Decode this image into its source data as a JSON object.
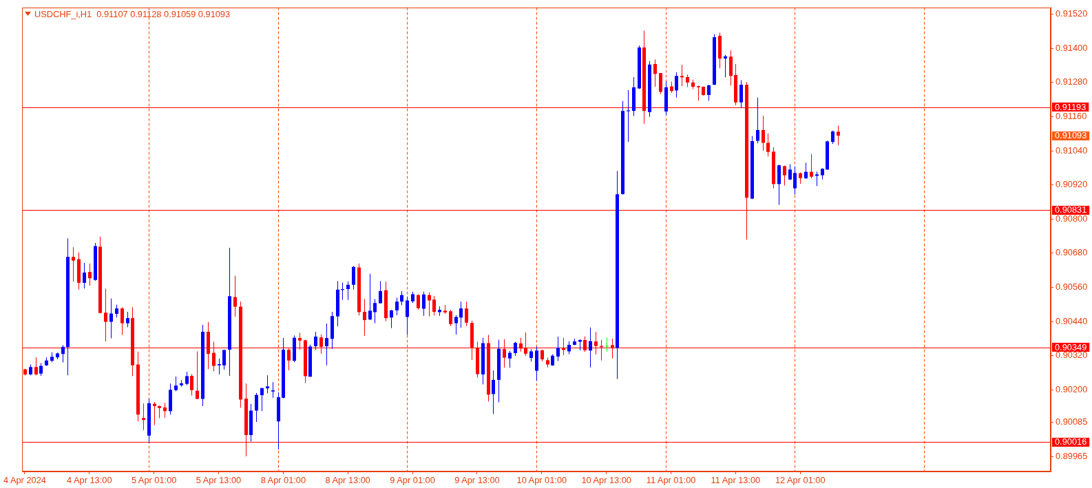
{
  "chart_data": {
    "type": "candlestick",
    "title": "USDCHF_i,H1  0.91107 0.91128 0.91059 0.91093",
    "categories": [
      "4 Apr 2024",
      null,
      null,
      null,
      null,
      null,
      null,
      null,
      null,
      null,
      null,
      null,
      "4 Apr 13:00",
      null,
      null,
      null,
      null,
      null,
      null,
      null,
      null,
      null,
      null,
      null,
      "5 Apr 01:00",
      null,
      null,
      null,
      null,
      null,
      null,
      null,
      null,
      null,
      null,
      null,
      "5 Apr 13:00",
      null,
      null,
      null,
      null,
      null,
      null,
      null,
      null,
      null,
      null,
      null,
      "8 Apr 01:00",
      null,
      null,
      null,
      null,
      null,
      null,
      null,
      null,
      null,
      null,
      null,
      "8 Apr 13:00",
      null,
      null,
      null,
      null,
      null,
      null,
      null,
      null,
      null,
      null,
      null,
      "9 Apr 01:00",
      null,
      null,
      null,
      null,
      null,
      null,
      null,
      null,
      null,
      null,
      null,
      "9 Apr 13:00",
      null,
      null,
      null,
      null,
      null,
      null,
      null,
      null,
      null,
      null,
      null,
      "10 Apr 01:00",
      null,
      null,
      null,
      null,
      null,
      null,
      null,
      null,
      null,
      null,
      null,
      "10 Apr 13:00",
      null,
      null,
      null,
      null,
      null,
      null,
      null,
      null,
      null,
      null,
      null,
      "11 Apr 01:00",
      null,
      null,
      null,
      null,
      null,
      null,
      null,
      null,
      null,
      null,
      null,
      "11 Apr 13:00",
      null,
      null,
      null,
      null,
      null,
      null,
      null,
      null,
      null,
      null,
      null,
      "12 Apr 01:00",
      null,
      null,
      null,
      null,
      null,
      null,
      null,
      null,
      null,
      null,
      null,
      null,
      null,
      null,
      null,
      null,
      null,
      null,
      null,
      null,
      null,
      null,
      null,
      null,
      null,
      null,
      null,
      null,
      null,
      null,
      null,
      null,
      null,
      null,
      null,
      null,
      null,
      null,
      null,
      null,
      null,
      null,
      null,
      null,
      null,
      null
    ],
    "ohlc": [
      [
        0.90272,
        0.90274,
        0.9025,
        0.90254
      ],
      [
        0.90254,
        0.90289,
        0.90251,
        0.9028
      ],
      [
        0.9028,
        0.90314,
        0.90251,
        0.90254
      ],
      [
        0.90257,
        0.90294,
        0.90249,
        0.90284
      ],
      [
        0.90286,
        0.90314,
        0.90284,
        0.90303
      ],
      [
        0.90302,
        0.90332,
        0.90297,
        0.90316
      ],
      [
        0.90314,
        0.90331,
        0.90307,
        0.90328
      ],
      [
        0.90326,
        0.90357,
        0.90296,
        0.90351
      ],
      [
        0.9035,
        0.90732,
        0.90251,
        0.90667
      ],
      [
        0.90667,
        0.90701,
        0.9058,
        0.90654
      ],
      [
        0.90659,
        0.90683,
        0.90552,
        0.90576
      ],
      [
        0.90576,
        0.90646,
        0.90556,
        0.90612
      ],
      [
        0.90614,
        0.90644,
        0.90566,
        0.90592
      ],
      [
        0.90586,
        0.90716,
        0.90583,
        0.90705
      ],
      [
        0.90703,
        0.90738,
        0.90468,
        0.9047
      ],
      [
        0.90471,
        0.90555,
        0.9037,
        0.90439
      ],
      [
        0.90439,
        0.90521,
        0.90381,
        0.90468
      ],
      [
        0.90467,
        0.90499,
        0.90454,
        0.90486
      ],
      [
        0.90486,
        0.9049,
        0.90393,
        0.90434
      ],
      [
        0.90434,
        0.90474,
        0.9042,
        0.90452
      ],
      [
        0.90452,
        0.9049,
        0.90248,
        0.90286
      ],
      [
        0.90289,
        0.90334,
        0.90089,
        0.90113
      ],
      [
        0.90101,
        0.90152,
        0.90058,
        0.90094
      ],
      [
        0.90039,
        0.90168,
        0.90014,
        0.90153
      ],
      [
        0.90151,
        0.90157,
        0.90076,
        0.90143
      ],
      [
        0.90143,
        0.90145,
        0.901,
        0.90136
      ],
      [
        0.90138,
        0.90154,
        0.90102,
        0.90125
      ],
      [
        0.90125,
        0.90222,
        0.90113,
        0.902
      ],
      [
        0.90199,
        0.90247,
        0.90195,
        0.90215
      ],
      [
        0.90216,
        0.90234,
        0.90211,
        0.90223
      ],
      [
        0.90221,
        0.90263,
        0.90216,
        0.90248
      ],
      [
        0.90249,
        0.90255,
        0.9018,
        0.90199
      ],
      [
        0.90197,
        0.90335,
        0.90167,
        0.90168
      ],
      [
        0.90168,
        0.90428,
        0.90143,
        0.90404
      ],
      [
        0.90404,
        0.90438,
        0.90273,
        0.90326
      ],
      [
        0.9033,
        0.90369,
        0.90265,
        0.90284
      ],
      [
        0.90286,
        0.9031,
        0.90254,
        0.9029
      ],
      [
        0.90286,
        0.90341,
        0.90271,
        0.9034
      ],
      [
        0.90341,
        0.90699,
        0.90249,
        0.90529
      ],
      [
        0.90526,
        0.90601,
        0.90457,
        0.90492
      ],
      [
        0.90492,
        0.9051,
        0.90137,
        0.90166
      ],
      [
        0.90169,
        0.90222,
        0.89966,
        0.90041
      ],
      [
        0.90041,
        0.90151,
        0.90018,
        0.90127
      ],
      [
        0.90127,
        0.90189,
        0.90087,
        0.90182
      ],
      [
        0.90181,
        0.90207,
        0.90125,
        0.90206
      ],
      [
        0.90205,
        0.90251,
        0.90188,
        0.90212
      ],
      [
        0.90194,
        0.90227,
        0.90172,
        0.90198
      ],
      [
        0.90089,
        0.90191,
        0.89991,
        0.90174
      ],
      [
        0.90172,
        0.90382,
        0.9017,
        0.90341
      ],
      [
        0.90341,
        0.90345,
        0.90268,
        0.90303
      ],
      [
        0.90302,
        0.90391,
        0.90297,
        0.90383
      ],
      [
        0.90382,
        0.904,
        0.90341,
        0.90373
      ],
      [
        0.90374,
        0.90376,
        0.90224,
        0.90248
      ],
      [
        0.90246,
        0.90359,
        0.90246,
        0.90352
      ],
      [
        0.90353,
        0.90404,
        0.90341,
        0.90387
      ],
      [
        0.90384,
        0.90395,
        0.90327,
        0.90351
      ],
      [
        0.90353,
        0.90433,
        0.90286,
        0.90382
      ],
      [
        0.90379,
        0.90474,
        0.90344,
        0.90459
      ],
      [
        0.90458,
        0.90582,
        0.90423,
        0.90552
      ],
      [
        0.90551,
        0.90577,
        0.90516,
        0.90554
      ],
      [
        0.90554,
        0.90581,
        0.90516,
        0.90569
      ],
      [
        0.90569,
        0.90635,
        0.90552,
        0.90632
      ],
      [
        0.9063,
        0.90644,
        0.90461,
        0.90473
      ],
      [
        0.90474,
        0.90519,
        0.9039,
        0.90445
      ],
      [
        0.90447,
        0.90608,
        0.90445,
        0.90478
      ],
      [
        0.90473,
        0.90519,
        0.90434,
        0.90505
      ],
      [
        0.90504,
        0.90582,
        0.90504,
        0.90547
      ],
      [
        0.9055,
        0.9058,
        0.90441,
        0.90452
      ],
      [
        0.90454,
        0.90481,
        0.90417,
        0.90479
      ],
      [
        0.90479,
        0.90524,
        0.90462,
        0.9051
      ],
      [
        0.9051,
        0.90547,
        0.90497,
        0.90533
      ],
      [
        0.90456,
        0.90527,
        0.90393,
        0.90514
      ],
      [
        0.90511,
        0.90545,
        0.90505,
        0.90536
      ],
      [
        0.90533,
        0.90536,
        0.90482,
        0.90487
      ],
      [
        0.90485,
        0.90545,
        0.9046,
        0.90535
      ],
      [
        0.90533,
        0.90543,
        0.90458,
        0.90514
      ],
      [
        0.90517,
        0.9053,
        0.90461,
        0.90474
      ],
      [
        0.90473,
        0.90493,
        0.9046,
        0.90481
      ],
      [
        0.90478,
        0.90498,
        0.90467,
        0.90472
      ],
      [
        0.90476,
        0.90481,
        0.90424,
        0.90431
      ],
      [
        0.90434,
        0.90462,
        0.90394,
        0.90456
      ],
      [
        0.90454,
        0.9051,
        0.90418,
        0.90486
      ],
      [
        0.90486,
        0.9051,
        0.90424,
        0.90436
      ],
      [
        0.90435,
        0.90443,
        0.90305,
        0.90349
      ],
      [
        0.90348,
        0.90369,
        0.90243,
        0.90255
      ],
      [
        0.90254,
        0.90383,
        0.90219,
        0.90364
      ],
      [
        0.90364,
        0.90393,
        0.90159,
        0.90183
      ],
      [
        0.90185,
        0.90268,
        0.90115,
        0.90235
      ],
      [
        0.90235,
        0.90376,
        0.90156,
        0.90344
      ],
      [
        0.90343,
        0.90378,
        0.90278,
        0.90313
      ],
      [
        0.9031,
        0.90337,
        0.90278,
        0.9033
      ],
      [
        0.90329,
        0.90369,
        0.90319,
        0.90365
      ],
      [
        0.90363,
        0.90383,
        0.90334,
        0.90345
      ],
      [
        0.90347,
        0.90402,
        0.90319,
        0.90327
      ],
      [
        0.90312,
        0.90343,
        0.90299,
        0.90335
      ],
      [
        0.90267,
        0.90352,
        0.90232,
        0.90338
      ],
      [
        0.90339,
        0.90341,
        0.903,
        0.90307
      ],
      [
        0.90304,
        0.90313,
        0.90279,
        0.90289
      ],
      [
        0.90286,
        0.90325,
        0.90284,
        0.9032
      ],
      [
        0.90317,
        0.90387,
        0.90301,
        0.90348
      ],
      [
        0.90348,
        0.90383,
        0.90322,
        0.9034
      ],
      [
        0.90335,
        0.90371,
        0.90325,
        0.90358
      ],
      [
        0.90358,
        0.9038,
        0.90357,
        0.9037
      ],
      [
        0.90369,
        0.90378,
        0.90338,
        0.90375
      ],
      [
        0.90375,
        0.90388,
        0.90333,
        0.90339
      ],
      [
        0.90338,
        0.90419,
        0.90279,
        0.90371
      ],
      [
        0.9037,
        0.90404,
        0.90324,
        0.90354
      ],
      [
        0.90354,
        0.90375,
        0.90303,
        0.9035
      ],
      [
        0.90355,
        0.90384,
        0.90334,
        0.90355
      ],
      [
        0.90357,
        0.9038,
        0.9031,
        0.90349
      ],
      [
        0.90347,
        0.90969,
        0.90238,
        0.90887
      ],
      [
        0.90888,
        0.91215,
        0.90886,
        0.9118
      ],
      [
        0.91179,
        0.91253,
        0.91071,
        0.91182
      ],
      [
        0.9118,
        0.91299,
        0.91162,
        0.91263
      ],
      [
        0.91259,
        0.9141,
        0.91257,
        0.91403
      ],
      [
        0.91403,
        0.91462,
        0.91135,
        0.9118
      ],
      [
        0.91176,
        0.91355,
        0.91159,
        0.91343
      ],
      [
        0.91345,
        0.91361,
        0.91265,
        0.9131
      ],
      [
        0.91313,
        0.91313,
        0.91239,
        0.91247
      ],
      [
        0.91178,
        0.91284,
        0.91165,
        0.91263
      ],
      [
        0.91266,
        0.91283,
        0.91244,
        0.9125
      ],
      [
        0.91252,
        0.91316,
        0.91227,
        0.91303
      ],
      [
        0.91303,
        0.91342,
        0.91267,
        0.91298
      ],
      [
        0.91299,
        0.91308,
        0.91264,
        0.9128
      ],
      [
        0.9128,
        0.9129,
        0.91257,
        0.91265
      ],
      [
        0.91267,
        0.91269,
        0.91216,
        0.91263
      ],
      [
        0.91265,
        0.91266,
        0.91234,
        0.91236
      ],
      [
        0.91236,
        0.91272,
        0.91216,
        0.9127
      ],
      [
        0.91272,
        0.9145,
        0.91271,
        0.91439
      ],
      [
        0.91444,
        0.91455,
        0.9133,
        0.91364
      ],
      [
        0.91364,
        0.91377,
        0.91298,
        0.91372
      ],
      [
        0.91371,
        0.91393,
        0.91269,
        0.91303
      ],
      [
        0.91306,
        0.91345,
        0.912,
        0.9121
      ],
      [
        0.9121,
        0.91288,
        0.9119,
        0.91272
      ],
      [
        0.91272,
        0.91281,
        0.90728,
        0.90875
      ],
      [
        0.90872,
        0.91092,
        0.9087,
        0.91074
      ],
      [
        0.91075,
        0.91227,
        0.91066,
        0.91113
      ],
      [
        0.91113,
        0.91163,
        0.9104,
        0.91068
      ],
      [
        0.91068,
        0.91101,
        0.9102,
        0.91036
      ],
      [
        0.91037,
        0.91052,
        0.90908,
        0.90923
      ],
      [
        0.90923,
        0.90991,
        0.9085,
        0.90989
      ],
      [
        0.90986,
        0.90988,
        0.90918,
        0.90954
      ],
      [
        0.90939,
        0.90993,
        0.90937,
        0.90974
      ],
      [
        0.90908,
        0.90985,
        0.90886,
        0.90962
      ],
      [
        0.90961,
        0.90964,
        0.90924,
        0.90944
      ],
      [
        0.90943,
        0.90998,
        0.90942,
        0.90966
      ],
      [
        0.90966,
        0.91029,
        0.90943,
        0.90949
      ],
      [
        0.90952,
        0.90967,
        0.90916,
        0.90957
      ],
      [
        0.90954,
        0.90978,
        0.90939,
        0.90977
      ],
      [
        0.90974,
        0.91076,
        0.90973,
        0.91073
      ],
      [
        0.91071,
        0.91111,
        0.91064,
        0.91108
      ],
      [
        0.91107,
        0.91128,
        0.91059,
        0.91093
      ],
      null,
      null,
      null,
      null,
      null,
      null,
      null,
      null,
      null,
      null,
      null,
      null,
      null,
      null,
      null,
      null,
      null,
      null,
      null,
      null,
      null,
      null,
      null,
      null,
      null,
      null,
      null,
      null,
      null,
      null,
      null,
      null,
      null,
      null,
      null,
      null,
      null,
      null,
      null
    ],
    "colors": [
      "#ff0000",
      "#0000ff",
      "#ff0000",
      "#0000ff",
      "#0000ff",
      "#0000ff",
      "#0000ff",
      "#0000ff",
      "#0000ff",
      "#ff0000",
      "#ff0000",
      "#0000ff",
      "#ff0000",
      "#0000ff",
      "#ff0000",
      "#ff0000",
      "#0000ff",
      "#0000ff",
      "#ff0000",
      "#0000ff",
      "#ff0000",
      "#ff0000",
      "#ff0000",
      "#0000ff",
      "#ff0000",
      "#ff0000",
      "#ff0000",
      "#0000ff",
      "#0000ff",
      "#0000ff",
      "#0000ff",
      "#ff0000",
      "#ff0000",
      "#0000ff",
      "#ff0000",
      "#ff0000",
      "#0000ff",
      "#0000ff",
      "#0000ff",
      "#ff0000",
      "#ff0000",
      "#ff0000",
      "#0000ff",
      "#0000ff",
      "#0000ff",
      "#0000ff",
      "#0000ff",
      "#0000ff",
      "#0000ff",
      "#ff0000",
      "#0000ff",
      "#ff0000",
      "#ff0000",
      "#0000ff",
      "#0000ff",
      "#ff0000",
      "#0000ff",
      "#0000ff",
      "#0000ff",
      "#0000ff",
      "#0000ff",
      "#0000ff",
      "#ff0000",
      "#ff0000",
      "#0000ff",
      "#0000ff",
      "#0000ff",
      "#ff0000",
      "#0000ff",
      "#0000ff",
      "#0000ff",
      "#0000ff",
      "#0000ff",
      "#ff0000",
      "#0000ff",
      "#ff0000",
      "#ff0000",
      "#0000ff",
      "#ff0000",
      "#ff0000",
      "#0000ff",
      "#0000ff",
      "#ff0000",
      "#ff0000",
      "#ff0000",
      "#0000ff",
      "#ff0000",
      "#0000ff",
      "#0000ff",
      "#ff0000",
      "#0000ff",
      "#0000ff",
      "#ff0000",
      "#ff0000",
      "#0000ff",
      "#0000ff",
      "#ff0000",
      "#ff0000",
      "#0000ff",
      "#0000ff",
      "#ff0000",
      "#0000ff",
      "#0000ff",
      "#0000ff",
      "#ff0000",
      "#0000ff",
      "#ff0000",
      "#ff0000",
      "#00ff00",
      "#ff0000",
      "#0000ff",
      "#0000ff",
      "#0000ff",
      "#0000ff",
      "#0000ff",
      "#ff0000",
      "#0000ff",
      "#ff0000",
      "#ff0000",
      "#0000ff",
      "#ff0000",
      "#0000ff",
      "#ff0000",
      "#ff0000",
      "#ff0000",
      "#ff0000",
      "#ff0000",
      "#0000ff",
      "#0000ff",
      "#ff0000",
      "#0000ff",
      "#ff0000",
      "#ff0000",
      "#0000ff",
      "#ff0000",
      "#0000ff",
      "#0000ff",
      "#ff0000",
      "#ff0000",
      "#ff0000",
      "#0000ff",
      "#ff0000",
      "#0000ff",
      "#0000ff",
      "#ff0000",
      "#0000ff",
      "#ff0000",
      "#0000ff",
      "#0000ff",
      "#0000ff",
      "#0000ff",
      "#ff0000",
      null,
      null,
      null,
      null,
      null,
      null,
      null,
      null,
      null,
      null,
      null,
      null,
      null,
      null,
      null,
      null,
      null,
      null,
      null,
      null,
      null,
      null,
      null,
      null,
      null,
      null,
      null,
      null,
      null,
      null,
      null,
      null,
      null,
      null,
      null,
      null,
      null,
      null,
      null
    ],
    "ylim": [
      0.89913,
      0.91544
    ],
    "yticks": [
      0.89965,
      0.90085,
      {
        "value": 0.902,
        "label": "0.90200"
      },
      {
        "value": 0.9032,
        "label": "0.90320"
      },
      {
        "value": 0.9044,
        "label": "0.90440"
      },
      {
        "value": 0.9056,
        "label": "0.90560"
      },
      {
        "value": 0.9068,
        "label": "0.90680"
      },
      {
        "value": 0.908,
        "label": "0.90800"
      },
      {
        "value": 0.9092,
        "label": "0.90920"
      },
      {
        "value": 0.9104,
        "label": "0.91040"
      },
      {
        "value": 0.9116,
        "label": "0.91160"
      },
      {
        "value": 0.9128,
        "label": "0.91280"
      },
      {
        "value": 0.914,
        "label": "0.91400"
      },
      {
        "value": 0.9152,
        "label": "0.91520"
      }
    ],
    "ref_lines": [
      {
        "axis": "y",
        "value": 0.91193,
        "label": "0.91193",
        "color": "#ff0000",
        "line_style": "solid"
      },
      {
        "axis": "y",
        "value": 0.90831,
        "label": "0.90831",
        "color": "#ff0000",
        "line_style": "solid"
      },
      {
        "axis": "y",
        "value": 0.90349,
        "label": "0.90349",
        "color": "#ff0000",
        "line_style": "solid"
      },
      {
        "axis": "y",
        "value": 0.90016,
        "label": "0.90016",
        "color": "#ff0000",
        "line_style": "solid"
      }
    ],
    "annotations": [
      "0.91093"
    ]
  }
}
